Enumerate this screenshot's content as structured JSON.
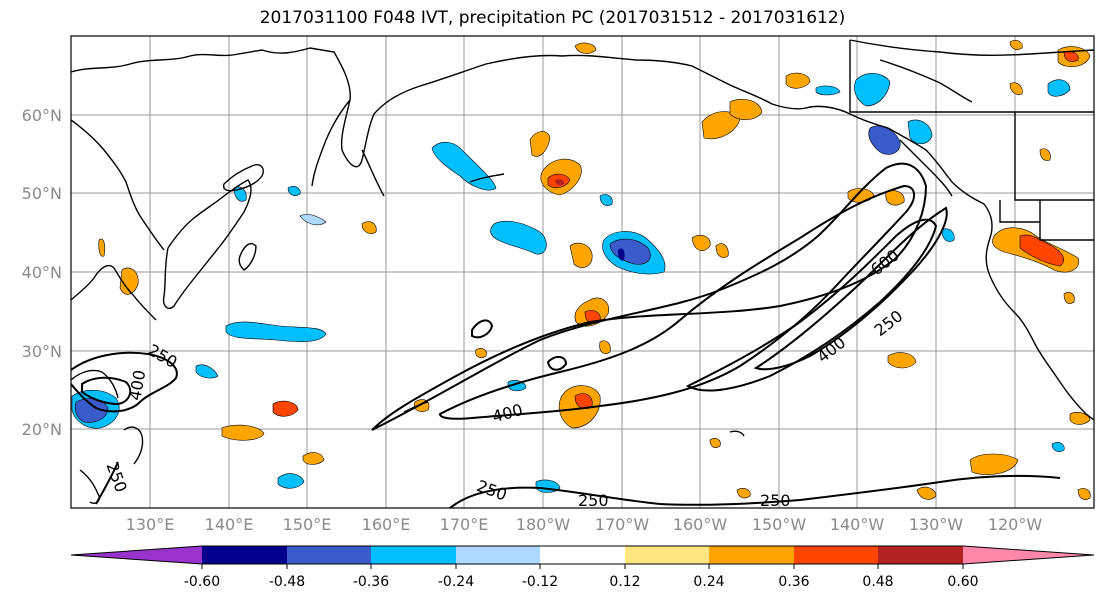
{
  "title": "2017031100 F048 IVT, precipitation PC (2017031512 - 2017031612)",
  "lat_labels": [
    "60°N",
    "50°N",
    "40°N",
    "30°N",
    "20°N"
  ],
  "lon_labels": [
    "130°E",
    "140°E",
    "150°E",
    "160°E",
    "170°E",
    "180°W",
    "170°W",
    "160°W",
    "150°W",
    "140°W",
    "130°W",
    "120°W"
  ],
  "contour_labels": [
    "600",
    "400",
    "250",
    "400",
    "250",
    "250",
    "250",
    "250",
    "250",
    "400"
  ],
  "colorbar": {
    "tick_labels": [
      "-0.60",
      "-0.48",
      "-0.36",
      "-0.24",
      "-0.12",
      "0.12",
      "0.24",
      "0.36",
      "0.48",
      "0.60"
    ],
    "colors": [
      "#9933cc",
      "#00008b",
      "#3a5bcc",
      "#00bfff",
      "#add8ff",
      "#ffffff",
      "#ffe680",
      "#ffa500",
      "#ff4500",
      "#b22222",
      "#ff88aa"
    ]
  },
  "colors": {
    "contour": "#000000",
    "coast": "#000000",
    "grid": "#9a9a9a"
  }
}
